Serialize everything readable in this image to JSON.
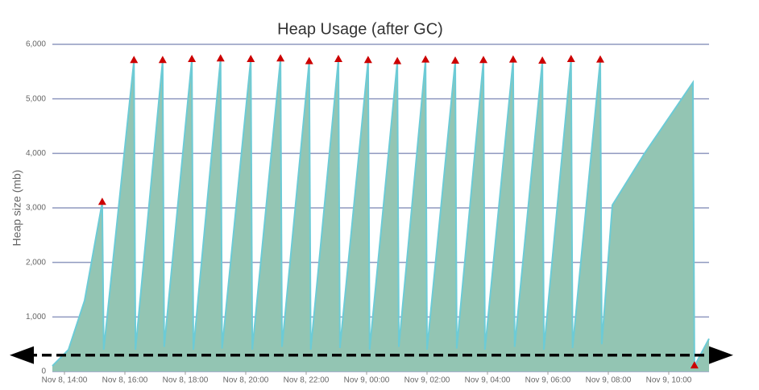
{
  "chart_data": {
    "type": "area",
    "title": "Heap Usage (after GC)",
    "y_label": "Heap size (mb)",
    "xlim": [
      "Nov 8, 13:36",
      "Nov 9, 11:20"
    ],
    "xticks": [
      "Nov 8, 14:00",
      "Nov 8, 16:00",
      "Nov 8, 18:00",
      "Nov 8, 20:00",
      "Nov 8, 22:00",
      "Nov 9, 00:00",
      "Nov 9, 02:00",
      "Nov 9, 04:00",
      "Nov 9, 06:00",
      "Nov 9, 08:00",
      "Nov 9, 10:00"
    ],
    "ylim": [
      0,
      6000
    ],
    "yticks": [
      0,
      {
        "value": 1000,
        "label": "1,000"
      },
      {
        "value": 2000,
        "label": "2,000"
      },
      {
        "value": 3000,
        "label": "3,000"
      },
      {
        "value": 4000,
        "label": "4,000"
      },
      {
        "value": 5000,
        "label": "5,000"
      },
      {
        "value": 6000,
        "label": "6,000"
      }
    ],
    "grid": true,
    "series": [
      {
        "fill": "#93c5b3",
        "color": "#6ccbd6",
        "x": [
          "Nov 8, 13:36",
          "Nov 8, 14:08",
          "Nov 8, 14:40",
          "Nov 8, 15:15",
          "Nov 8, 15:18",
          "Nov 8, 16:18",
          "Nov 8, 16:21",
          "Nov 8, 17:15",
          "Nov 8, 17:18",
          "Nov 8, 18:13",
          "Nov 8, 18:16",
          "Nov 8, 19:10",
          "Nov 8, 19:13",
          "Nov 8, 20:10",
          "Nov 8, 20:13",
          "Nov 8, 21:09",
          "Nov 8, 21:12",
          "Nov 8, 22:06",
          "Nov 8, 22:09",
          "Nov 8, 23:04",
          "Nov 8, 23:07",
          "Nov 9, 00:03",
          "Nov 9, 00:06",
          "Nov 9, 01:01",
          "Nov 9, 01:04",
          "Nov 9, 01:57",
          "Nov 9, 02:00",
          "Nov 9, 02:56",
          "Nov 9, 02:59",
          "Nov 9, 03:52",
          "Nov 9, 03:55",
          "Nov 9, 04:51",
          "Nov 9, 04:54",
          "Nov 9, 05:49",
          "Nov 9, 05:52",
          "Nov 9, 06:46",
          "Nov 9, 06:49",
          "Nov 9, 07:44",
          "Nov 9, 07:47",
          "Nov 9, 08:08",
          "Nov 9, 09:12",
          "Nov 9, 10:48",
          "Nov 9, 10:51",
          "Nov 9, 11:20"
        ],
        "values": [
          100,
          400,
          1300,
          3100,
          400,
          5700,
          400,
          5700,
          450,
          5720,
          400,
          5730,
          420,
          5720,
          400,
          5730,
          450,
          5680,
          400,
          5720,
          430,
          5700,
          400,
          5680,
          450,
          5710,
          400,
          5690,
          420,
          5700,
          400,
          5710,
          450,
          5690,
          400,
          5720,
          430,
          5710,
          500,
          3050,
          4000,
          5300,
          100,
          600
        ]
      },
      {
        "marker": "triangle",
        "color": "#cc0000",
        "x": [
          "Nov 8, 15:15",
          "Nov 8, 16:18",
          "Nov 8, 17:15",
          "Nov 8, 18:13",
          "Nov 8, 19:10",
          "Nov 8, 20:10",
          "Nov 8, 21:09",
          "Nov 8, 22:06",
          "Nov 8, 23:04",
          "Nov 9, 00:03",
          "Nov 9, 01:01",
          "Nov 9, 01:57",
          "Nov 9, 02:56",
          "Nov 9, 03:52",
          "Nov 9, 04:51",
          "Nov 9, 05:49",
          "Nov 9, 06:46",
          "Nov 9, 07:44",
          "Nov 9, 10:51"
        ],
        "values": [
          3100,
          5700,
          5700,
          5720,
          5730,
          5720,
          5730,
          5680,
          5720,
          5700,
          5680,
          5710,
          5690,
          5700,
          5710,
          5690,
          5720,
          5710,
          100
        ]
      }
    ],
    "reference_line": {
      "value": 300,
      "color": "#000000"
    }
  }
}
